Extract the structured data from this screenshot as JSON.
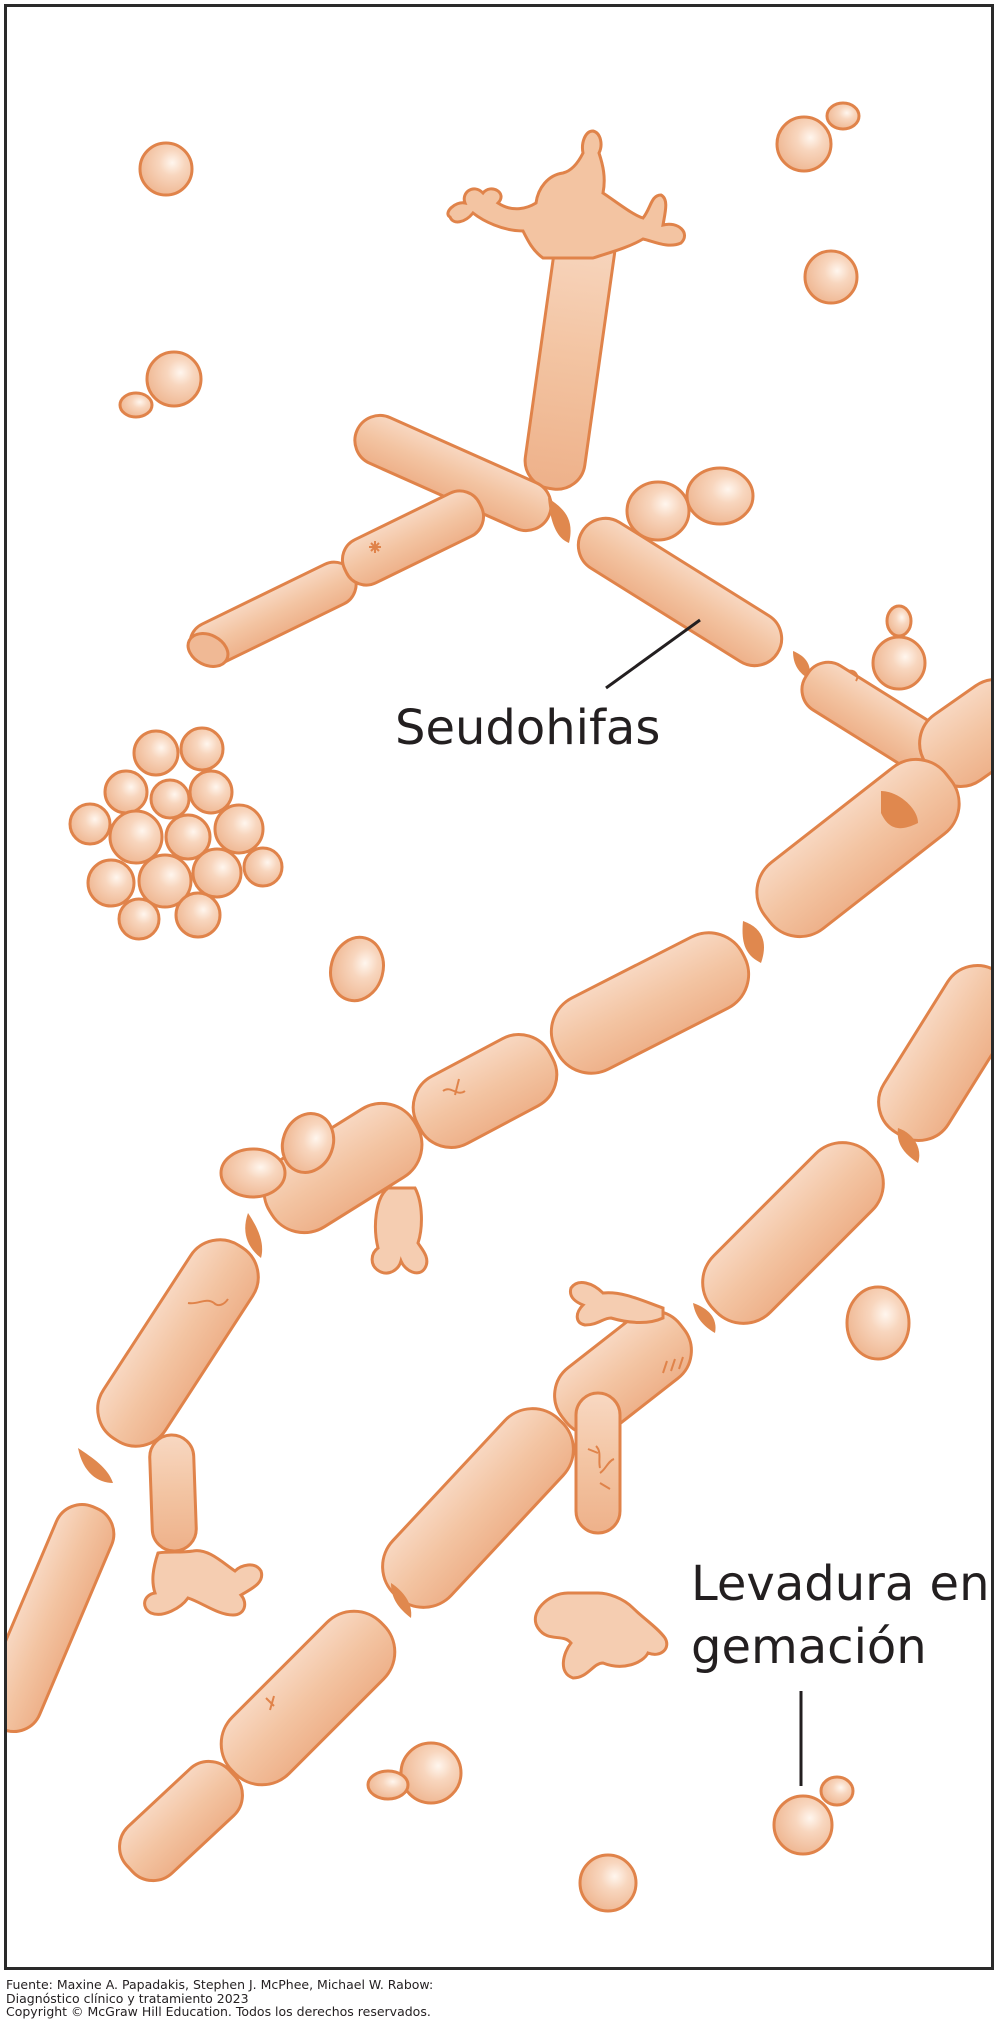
{
  "diagram": {
    "labels": {
      "pseudohyphae": "Seudohifas",
      "budding_yeast_line1": "Levadura en",
      "budding_yeast_line2": "gemación"
    },
    "colors": {
      "fill": "#f2bf9c",
      "fill_light": "#f8d9c3",
      "outline": "#e0834a",
      "septum": "#e0884e",
      "text": "#231f20",
      "frame": "#2a2a2a"
    }
  },
  "footer": {
    "line1": "Fuente: Maxine A. Papadakis, Stephen J. McPhee, Michael W. Rabow:",
    "line2": "Diagnóstico clínico y tratamiento 2023",
    "line3": "Copyright © McGraw Hill Education. Todos los derechos reservados."
  }
}
